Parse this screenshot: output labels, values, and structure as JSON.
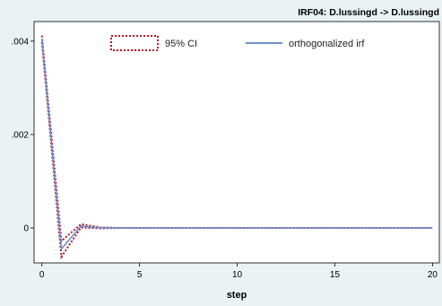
{
  "chart_data": {
    "type": "line",
    "subtitle": "IRF04: D.lussingd -> D.lussingd",
    "xlabel": "step",
    "ylabel": "",
    "x_ticks": [
      0,
      5,
      10,
      15,
      20
    ],
    "y_ticks": [
      0,
      0.002,
      0.004
    ],
    "y_tick_labels": [
      "0",
      ".002",
      ".004"
    ],
    "xlim": [
      -0.4,
      20.35
    ],
    "ylim": [
      -0.00075,
      0.00442
    ],
    "grid": false,
    "legend_position": "top",
    "x": [
      0,
      1,
      2,
      3,
      4,
      5,
      6,
      7,
      8,
      9,
      10,
      11,
      12,
      13,
      14,
      15,
      16,
      17,
      18,
      19,
      20
    ],
    "series": [
      {
        "name": "95% CI",
        "style": "dotted",
        "color": "#b2182b",
        "lower": [
          0.00398,
          -0.00062,
          1e-05,
          -1e-05,
          0,
          0,
          0,
          0,
          0,
          0,
          0,
          0,
          0,
          0,
          0,
          0,
          0,
          0,
          0,
          0,
          0
        ],
        "upper": [
          0.00412,
          -0.00028,
          8e-05,
          1e-05,
          0,
          0,
          0,
          0,
          0,
          0,
          0,
          0,
          0,
          0,
          0,
          0,
          0,
          0,
          0,
          0,
          0
        ]
      },
      {
        "name": "orthogonalized irf",
        "style": "solid",
        "color": "#6f8fc9",
        "values": [
          0.00405,
          -0.00045,
          4e-05,
          0,
          0,
          0,
          0,
          0,
          0,
          0,
          0,
          0,
          0,
          0,
          0,
          0,
          0,
          0,
          0,
          0,
          0
        ]
      }
    ]
  },
  "colors": {
    "background": "#eaf2f3",
    "plot_background": "#ffffff",
    "ci": "#b2182b",
    "irf": "#6f8fc9"
  }
}
